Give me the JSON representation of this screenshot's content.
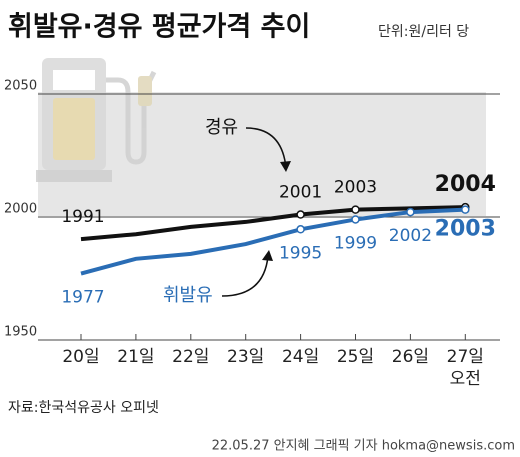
{
  "chart_data": {
    "type": "line",
    "title": "휘발유·경유 평균가격 추이",
    "unit_note": "단위:원/리터 당",
    "categories": [
      "20일",
      "21일",
      "22일",
      "23일",
      "24일",
      "25일",
      "26일",
      "27일\n오전"
    ],
    "series": [
      {
        "name": "경유",
        "color": "#111111",
        "values": [
          1991,
          1993,
          1996,
          1998,
          2001,
          2003,
          2003.5,
          2004
        ],
        "value_labels": [
          "1991",
          null,
          null,
          null,
          "2001",
          "2003",
          null,
          "2004"
        ]
      },
      {
        "name": "휘발유",
        "color": "#2a6db5",
        "values": [
          1977,
          1983,
          1985,
          1989,
          1995,
          1999,
          2002,
          2003
        ],
        "value_labels": [
          "1977",
          null,
          null,
          null,
          "1995",
          "1999",
          "2002",
          "2003"
        ]
      }
    ],
    "ylim": [
      1950,
      2050
    ],
    "yticks": [
      1950,
      2000,
      2050
    ],
    "source": "자료:한국석유공사 오피넷",
    "credit": "22.05.27 안지혜 그래픽 기자 hokma@newsis.com"
  }
}
